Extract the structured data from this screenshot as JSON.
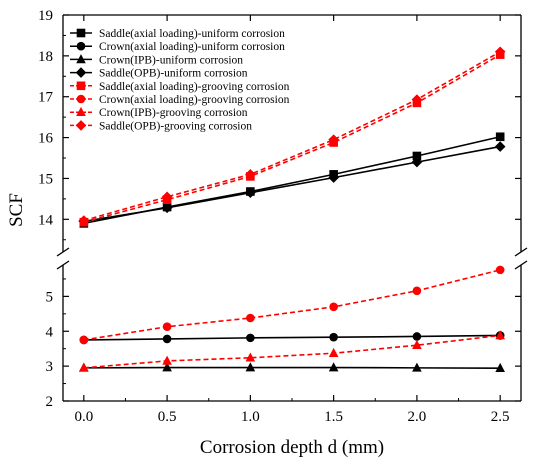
{
  "chart_data": {
    "type": "line",
    "xlabel": "Corrosion depth d (mm)",
    "ylabel": "SCF",
    "x": [
      0.0,
      0.5,
      1.0,
      1.5,
      2.0,
      2.5
    ],
    "x_ticks": [
      "0.0",
      "0.5",
      "1.0",
      "1.5",
      "2.0",
      "2.5"
    ],
    "xlim": [
      -0.125,
      2.625
    ],
    "y_axis_break": true,
    "upper_panel": {
      "ylim": [
        13.2,
        19
      ],
      "y_ticks": [
        "14",
        "15",
        "16",
        "17",
        "18",
        "19"
      ]
    },
    "lower_panel": {
      "ylim": [
        2,
        5.9
      ],
      "y_ticks": [
        "2",
        "3",
        "4",
        "5"
      ]
    },
    "legend_position": "top-left",
    "colors": {
      "uniform": "#000000",
      "grooving": "#ff0000"
    },
    "series": [
      {
        "name": "Saddle(axial loading)-uniform corrosion",
        "marker": "square",
        "style": "solid",
        "color": "#000000",
        "panel": "upper",
        "values": [
          13.9,
          14.3,
          14.68,
          15.1,
          15.55,
          16.02
        ]
      },
      {
        "name": "Crown(axial loading)-uniform corrosion",
        "marker": "circle",
        "style": "solid",
        "color": "#000000",
        "panel": "lower",
        "values": [
          3.75,
          3.78,
          3.81,
          3.83,
          3.85,
          3.88
        ]
      },
      {
        "name": "Crown(IPB)-uniform corrosion",
        "marker": "triangle",
        "style": "solid",
        "color": "#000000",
        "panel": "lower",
        "values": [
          2.95,
          2.96,
          2.96,
          2.96,
          2.95,
          2.94
        ]
      },
      {
        "name": "Saddle(OPB)-uniform corrosion",
        "marker": "diamond",
        "style": "solid",
        "color": "#000000",
        "panel": "upper",
        "values": [
          13.95,
          14.28,
          14.65,
          15.02,
          15.4,
          15.78
        ]
      },
      {
        "name": "Saddle(axial loading)-grooving corrosion",
        "marker": "square",
        "style": "dashed",
        "color": "#ff0000",
        "panel": "upper",
        "values": [
          13.93,
          14.48,
          15.05,
          15.88,
          16.85,
          18.03
        ]
      },
      {
        "name": "Crown(axial loading)-grooving corrosion",
        "marker": "circle",
        "style": "dashed",
        "color": "#ff0000",
        "panel": "lower",
        "values": [
          3.75,
          4.13,
          4.38,
          4.7,
          5.16,
          5.76
        ]
      },
      {
        "name": "Crown(IPB)-grooving corrosion",
        "marker": "triangle",
        "style": "dashed",
        "color": "#ff0000",
        "panel": "lower",
        "values": [
          2.95,
          3.15,
          3.24,
          3.37,
          3.6,
          3.88
        ]
      },
      {
        "name": "Saddle(OPB)-grooving corrosion",
        "marker": "diamond",
        "style": "dashed",
        "color": "#ff0000",
        "panel": "upper",
        "values": [
          13.97,
          14.55,
          15.1,
          15.95,
          16.93,
          18.1
        ]
      }
    ]
  }
}
